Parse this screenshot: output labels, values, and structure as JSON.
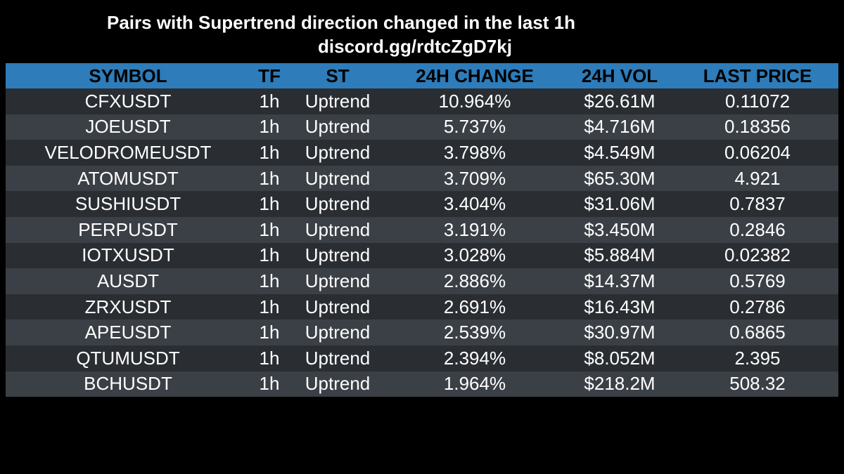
{
  "header": {
    "title": "Pairs with Supertrend direction changed in the last 1h",
    "link": "discord.gg/rdtcZgD7kj"
  },
  "table": {
    "columns": {
      "symbol": "SYMBOL",
      "tf": "TF",
      "st": "ST",
      "change": "24H CHANGE",
      "vol": "24H VOL",
      "price": "LAST PRICE"
    },
    "rows": [
      {
        "symbol": "CFXUSDT",
        "tf": "1h",
        "st": "Uptrend",
        "change": "10.964%",
        "vol": "$26.61M",
        "price": "0.11072"
      },
      {
        "symbol": "JOEUSDT",
        "tf": "1h",
        "st": "Uptrend",
        "change": "5.737%",
        "vol": "$4.716M",
        "price": "0.18356"
      },
      {
        "symbol": "VELODROMEUSDT",
        "tf": "1h",
        "st": "Uptrend",
        "change": "3.798%",
        "vol": "$4.549M",
        "price": "0.06204"
      },
      {
        "symbol": "ATOMUSDT",
        "tf": "1h",
        "st": "Uptrend",
        "change": "3.709%",
        "vol": "$65.30M",
        "price": "4.921"
      },
      {
        "symbol": "SUSHIUSDT",
        "tf": "1h",
        "st": "Uptrend",
        "change": "3.404%",
        "vol": "$31.06M",
        "price": "0.7837"
      },
      {
        "symbol": "PERPUSDT",
        "tf": "1h",
        "st": "Uptrend",
        "change": "3.191%",
        "vol": "$3.450M",
        "price": "0.2846"
      },
      {
        "symbol": "IOTXUSDT",
        "tf": "1h",
        "st": "Uptrend",
        "change": "3.028%",
        "vol": "$5.884M",
        "price": "0.02382"
      },
      {
        "symbol": "AUSDT",
        "tf": "1h",
        "st": "Uptrend",
        "change": "2.886%",
        "vol": "$14.37M",
        "price": "0.5769"
      },
      {
        "symbol": "ZRXUSDT",
        "tf": "1h",
        "st": "Uptrend",
        "change": "2.691%",
        "vol": "$16.43M",
        "price": "0.2786"
      },
      {
        "symbol": "APEUSDT",
        "tf": "1h",
        "st": "Uptrend",
        "change": "2.539%",
        "vol": "$30.97M",
        "price": "0.6865"
      },
      {
        "symbol": "QTUMUSDT",
        "tf": "1h",
        "st": "Uptrend",
        "change": "2.394%",
        "vol": "$8.052M",
        "price": "2.395"
      },
      {
        "symbol": "BCHUSDT",
        "tf": "1h",
        "st": "Uptrend",
        "change": "1.964%",
        "vol": "$218.2M",
        "price": "508.32"
      }
    ]
  },
  "colors": {
    "background": "#000000",
    "header": "#2e7cb9",
    "row_dark": "#2a2e33",
    "row_light": "#3b4046",
    "text": "#ffffff"
  }
}
